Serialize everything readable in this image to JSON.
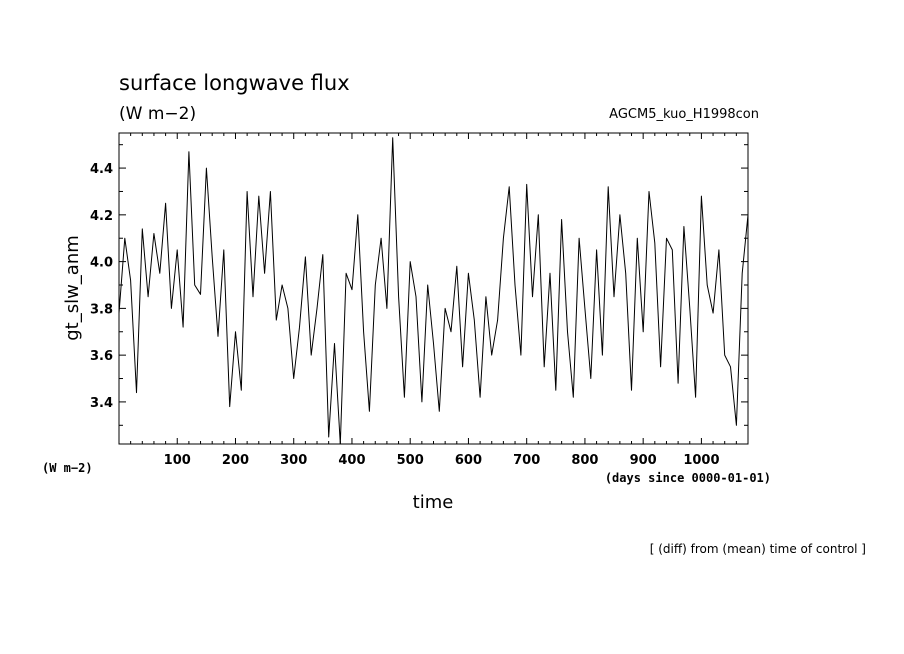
{
  "chart_data": {
    "type": "line",
    "title": "surface longwave flux",
    "units": "(W m−2)",
    "model": "AGCM5_kuo_H1998con",
    "ylabel": "gt_slw_anm",
    "xlabel": "time",
    "x_units": "(days since 0000-01-01)",
    "y_units": "(W m−2)",
    "note": "[ (diff) from (mean) time of control ]",
    "xlim": [
      0,
      1080
    ],
    "ylim": [
      3.22,
      4.55
    ],
    "x_ticks": [
      100,
      200,
      300,
      400,
      500,
      600,
      700,
      800,
      900,
      1000
    ],
    "y_ticks": [
      3.4,
      3.6,
      3.8,
      4.0,
      4.2,
      4.4
    ],
    "grid": false,
    "series": [
      {
        "color": "#000000",
        "x": [
          0,
          10,
          20,
          30,
          40,
          50,
          60,
          70,
          80,
          90,
          100,
          110,
          120,
          130,
          140,
          150,
          160,
          170,
          180,
          190,
          200,
          210,
          220,
          230,
          240,
          250,
          260,
          270,
          280,
          290,
          300,
          310,
          320,
          330,
          340,
          350,
          360,
          370,
          380,
          390,
          400,
          410,
          420,
          430,
          440,
          450,
          460,
          470,
          480,
          490,
          500,
          510,
          520,
          530,
          540,
          550,
          560,
          570,
          580,
          590,
          600,
          610,
          620,
          630,
          640,
          650,
          660,
          670,
          680,
          690,
          700,
          710,
          720,
          730,
          740,
          750,
          760,
          770,
          780,
          790,
          800,
          810,
          820,
          830,
          840,
          850,
          860,
          870,
          880,
          890,
          900,
          910,
          920,
          930,
          940,
          950,
          960,
          970,
          980,
          990,
          1000,
          1010,
          1020,
          1030,
          1040,
          1050,
          1060,
          1070,
          1080
        ],
        "y": [
          3.78,
          4.1,
          3.92,
          3.44,
          4.14,
          3.85,
          4.12,
          3.95,
          4.25,
          3.8,
          4.05,
          3.72,
          4.47,
          3.9,
          3.86,
          4.4,
          4.02,
          3.68,
          4.05,
          3.38,
          3.7,
          3.45,
          4.3,
          3.85,
          4.28,
          3.95,
          4.3,
          3.75,
          3.9,
          3.8,
          3.5,
          3.72,
          4.02,
          3.6,
          3.8,
          4.03,
          3.25,
          3.65,
          3.22,
          3.95,
          3.88,
          4.2,
          3.7,
          3.36,
          3.9,
          4.1,
          3.8,
          4.53,
          3.85,
          3.42,
          4.0,
          3.85,
          3.4,
          3.9,
          3.65,
          3.36,
          3.8,
          3.7,
          3.98,
          3.55,
          3.95,
          3.75,
          3.42,
          3.85,
          3.6,
          3.75,
          4.1,
          4.32,
          3.9,
          3.6,
          4.33,
          3.85,
          4.2,
          3.55,
          3.95,
          3.45,
          4.18,
          3.7,
          3.42,
          4.1,
          3.8,
          3.5,
          4.05,
          3.6,
          4.32,
          3.85,
          4.2,
          3.95,
          3.45,
          4.1,
          3.7,
          4.3,
          4.08,
          3.55,
          4.1,
          4.05,
          3.48,
          4.15,
          3.8,
          3.42,
          4.28,
          3.9,
          3.78,
          4.05,
          3.6,
          3.55,
          3.3,
          3.95,
          4.2
        ]
      }
    ]
  }
}
